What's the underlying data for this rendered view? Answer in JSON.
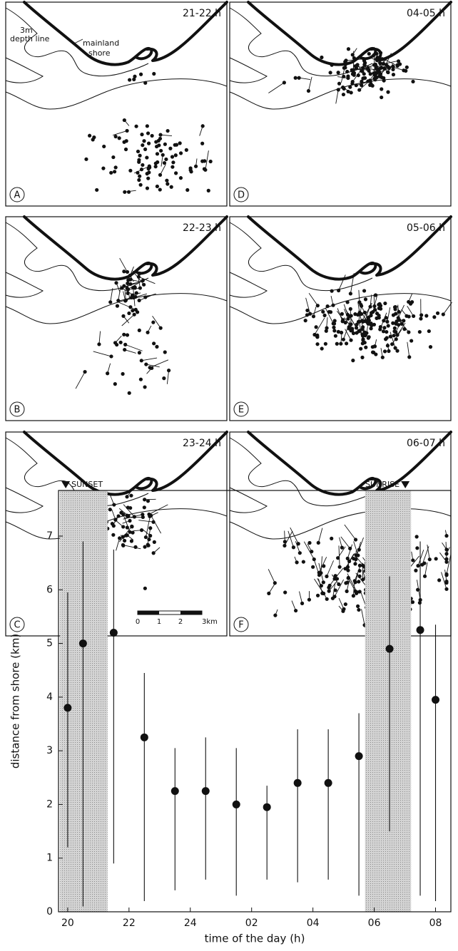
{
  "panels": [
    {
      "letter": "A",
      "time": "21-22 h"
    },
    {
      "letter": "D",
      "time": "04-05 h"
    },
    {
      "letter": "B",
      "time": "22-23 h"
    },
    {
      "letter": "E",
      "time": "05-06 h"
    },
    {
      "letter": "C",
      "time": "23-24 h"
    },
    {
      "letter": "F",
      "time": "06-07 h"
    }
  ],
  "map_labels": {
    "shore": "mainland\nshore",
    "shore_lines": [
      "mainland",
      "shore"
    ],
    "depth_lines": [
      "3m",
      "depth line"
    ]
  },
  "scale_bar": {
    "labels": [
      "0",
      "1",
      "2",
      "3km"
    ]
  },
  "chart_data": {
    "type": "scatter",
    "x_label": "time of the day (h)",
    "y_label": "distance from shore (km)",
    "x": [
      20,
      20.5,
      21.5,
      22.5,
      23.5,
      24.5,
      25.5,
      26.5,
      27.5,
      28.5,
      29.5,
      30.5,
      31.5,
      32
    ],
    "values": [
      3.8,
      5.0,
      5.2,
      3.25,
      2.25,
      2.25,
      2.0,
      1.95,
      2.4,
      2.4,
      2.9,
      4.9,
      5.25,
      3.95
    ],
    "low": [
      1.2,
      0.1,
      0.9,
      0.2,
      0.4,
      0.6,
      0.3,
      0.6,
      0.55,
      0.6,
      0.3,
      1.5,
      0.3,
      0.2
    ],
    "high": [
      5.95,
      6.9,
      6.75,
      4.45,
      3.05,
      3.25,
      3.05,
      2.35,
      3.4,
      3.4,
      3.7,
      6.25,
      6.9,
      5.35
    ],
    "color": "#111111",
    "xlim": [
      19.7,
      32.5
    ],
    "ylim": [
      0,
      7.85
    ],
    "xticks": [
      20,
      22,
      24,
      {
        "value": 26,
        "label": "02"
      },
      {
        "value": 28,
        "label": "04"
      },
      {
        "value": 30,
        "label": "06"
      },
      {
        "value": 32,
        "label": "08"
      }
    ],
    "yticks": [
      0,
      1,
      2,
      3,
      4,
      5,
      6,
      7
    ],
    "shaded_regions": [
      {
        "label": "SUNSET",
        "x0": 19.75,
        "x1": 21.3
      },
      {
        "label": "SUNRISE",
        "x0": 29.7,
        "x1": 31.2
      }
    ],
    "shade_color": "#bdbdbd"
  }
}
